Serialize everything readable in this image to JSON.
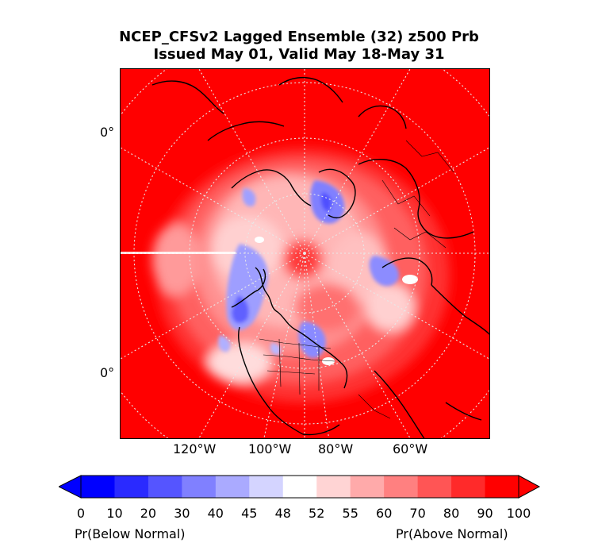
{
  "title": {
    "line1": "NCEP_CFSv2 Lagged Ensemble (32) z500 Prb",
    "line2": "Issued May 01, Valid May 18-May 31"
  },
  "map": {
    "lat_labels": [
      "0°",
      "0°"
    ],
    "lon_labels": [
      "120°W",
      "100°W",
      "80°W",
      "60°W"
    ],
    "background_color": "#ff0000"
  },
  "colorbar": {
    "ticks": [
      "0",
      "10",
      "20",
      "30",
      "40",
      "45",
      "48",
      "52",
      "55",
      "60",
      "70",
      "80",
      "90",
      "100"
    ],
    "colors": [
      "#0000ff",
      "#2a2aff",
      "#5555ff",
      "#8080ff",
      "#aaaaff",
      "#d4d4ff",
      "#ffffff",
      "#ffd4d4",
      "#ffaaaa",
      "#ff8080",
      "#ff5555",
      "#ff2a2a",
      "#ff0000"
    ],
    "left_label": "Pr(Below Normal)",
    "right_label": "Pr(Above Normal)"
  }
}
